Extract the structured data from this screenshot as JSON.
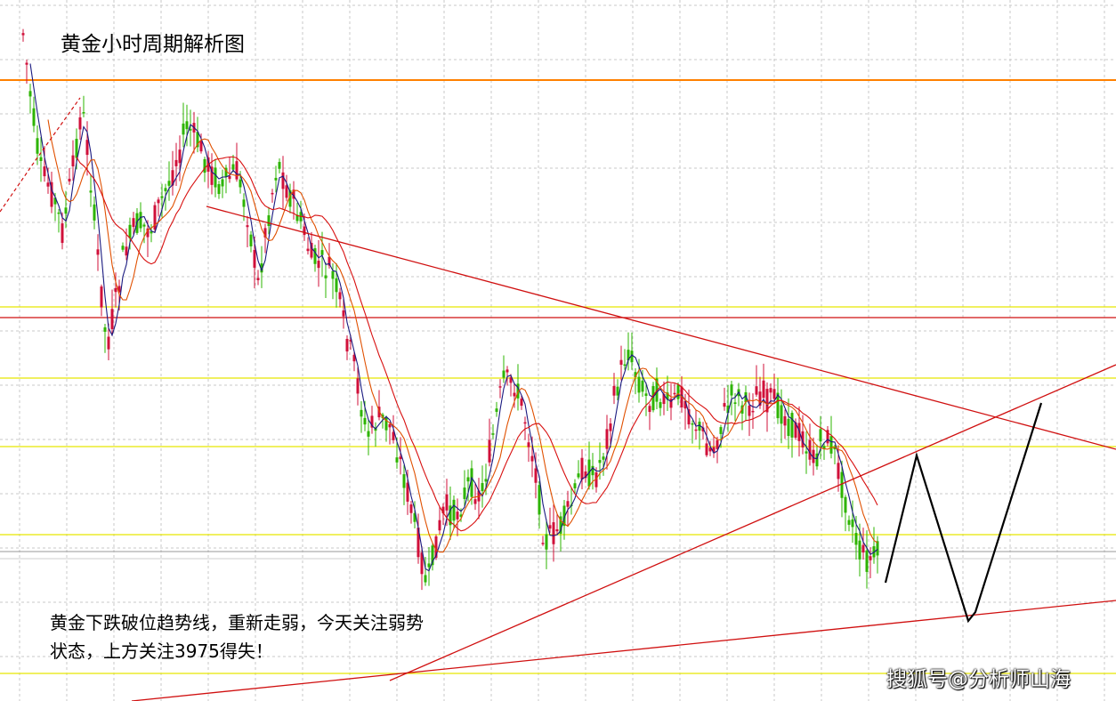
{
  "chart_data": {
    "type": "candlestick",
    "title": "黄金小时周期解析图",
    "annotation_lines": [
      "黄金下跌破位趋势线，重新走弱，今天关注弱势",
      "状态，上方关注3975得失！"
    ],
    "watermark": "搜狐号@分析师山海",
    "grid": true,
    "colors": {
      "up": "#2db400",
      "down": "#d0103a",
      "grid": "#c8c8c8",
      "resistance_line": "#d01010",
      "orange_line": "#ff8000",
      "yellow_line": "#e8e800",
      "ma_fast": "#1a1a80",
      "ma_mid": "#e05000",
      "ma_slow": "#d81010",
      "forecast": "#000000"
    }
  }
}
